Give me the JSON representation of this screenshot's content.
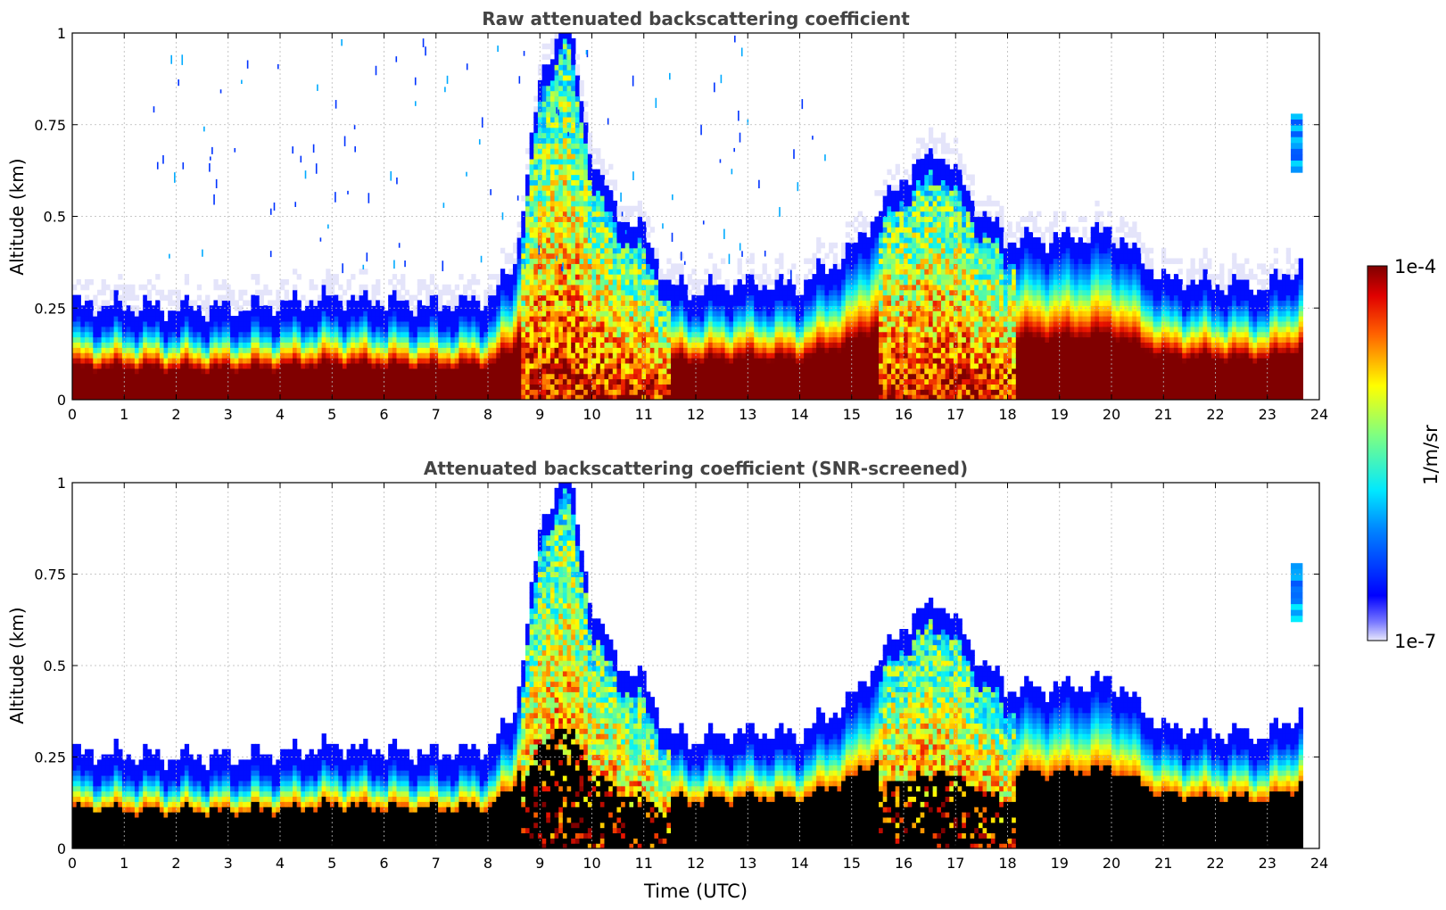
{
  "chart_data": [
    {
      "type": "heatmap",
      "title": "Raw attenuated backscattering coefficient",
      "xlabel": "",
      "ylabel": "Altitude (km)",
      "xlim": [
        0,
        24
      ],
      "ylim": [
        0,
        1
      ],
      "x_ticks": [
        "0",
        "1",
        "2",
        "3",
        "4",
        "5",
        "6",
        "7",
        "8",
        "9",
        "10",
        "11",
        "12",
        "13",
        "14",
        "15",
        "16",
        "17",
        "18",
        "19",
        "20",
        "21",
        "22",
        "23",
        "24"
      ],
      "y_ticks": [
        "0",
        "0.25",
        "0.5",
        "0.75",
        "1"
      ],
      "grid": true,
      "data_end_hour": 23.7,
      "description_series": [
        {
          "name": "boundary_layer_top_km",
          "x": [
            0,
            1,
            2,
            3,
            4,
            5,
            6,
            7,
            8,
            8.5,
            9,
            9.5,
            10,
            10.5,
            11,
            11.5,
            12,
            13,
            14,
            15,
            16,
            16.7,
            17,
            17.5,
            18,
            19,
            20,
            21,
            22,
            23,
            23.7
          ],
          "values": [
            0.2,
            0.2,
            0.19,
            0.19,
            0.2,
            0.22,
            0.21,
            0.2,
            0.21,
            0.3,
            0.8,
            1.0,
            0.6,
            0.45,
            0.4,
            0.25,
            0.24,
            0.26,
            0.25,
            0.35,
            0.55,
            0.62,
            0.56,
            0.45,
            0.38,
            0.38,
            0.4,
            0.27,
            0.26,
            0.25,
            0.32
          ]
        }
      ]
    },
    {
      "type": "heatmap",
      "title": "Attenuated backscattering coefficient (SNR-screened)",
      "xlabel": "Time (UTC)",
      "ylabel": "Altitude (km)",
      "xlim": [
        0,
        24
      ],
      "ylim": [
        0,
        1
      ],
      "x_ticks": [
        "0",
        "1",
        "2",
        "3",
        "4",
        "5",
        "6",
        "7",
        "8",
        "9",
        "10",
        "11",
        "12",
        "13",
        "14",
        "15",
        "16",
        "17",
        "18",
        "19",
        "20",
        "21",
        "22",
        "23",
        "24"
      ],
      "y_ticks": [
        "0",
        "0.25",
        "0.5",
        "0.75",
        "1"
      ],
      "grid": true,
      "data_end_hour": 23.7
    }
  ],
  "colorbar": {
    "max_label": "1e-4",
    "min_label": "1e-7",
    "unit_label": "1/m/sr",
    "colormap": "jet"
  }
}
